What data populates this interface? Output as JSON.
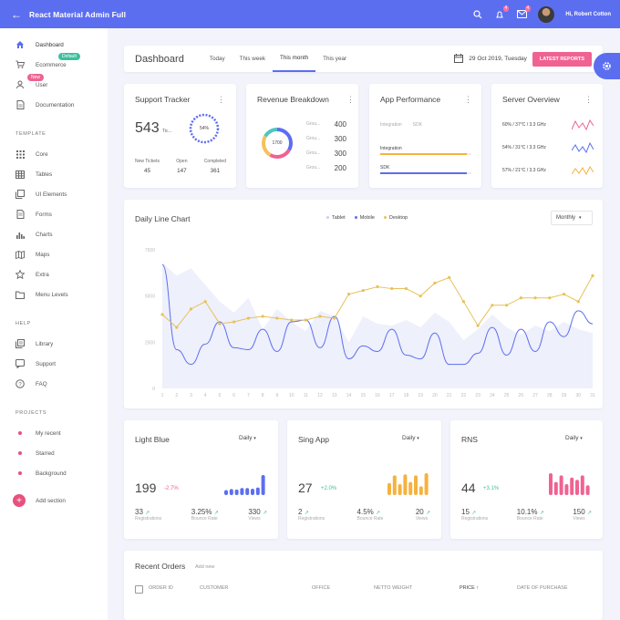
{
  "topbar": {
    "title": "React Material Admin Full",
    "badge1": "4",
    "badge2": "4",
    "user": "Hi, Robert Cotton"
  },
  "sidebar": {
    "items": [
      {
        "label": "Dashboard",
        "icon": "home-icon"
      },
      {
        "label": "Ecommerce",
        "icon": "cart-icon",
        "badge": "Default"
      },
      {
        "label": "User",
        "icon": "user-icon",
        "badge": "New"
      },
      {
        "label": "Documentation",
        "icon": "document-icon"
      }
    ],
    "template_header": "TEMPLATE",
    "template_items": [
      {
        "label": "Core",
        "icon": "grid-icon"
      },
      {
        "label": "Tables",
        "icon": "table-icon"
      },
      {
        "label": "UI Elements",
        "icon": "layers-icon"
      },
      {
        "label": "Forms",
        "icon": "form-icon"
      },
      {
        "label": "Charts",
        "icon": "bar-chart-icon"
      },
      {
        "label": "Maps",
        "icon": "map-icon"
      },
      {
        "label": "Extra",
        "icon": "star-icon"
      },
      {
        "label": "Menu Levels",
        "icon": "folder-icon"
      }
    ],
    "help_header": "HELP",
    "help_items": [
      {
        "label": "Library",
        "icon": "library-icon"
      },
      {
        "label": "Support",
        "icon": "support-icon"
      },
      {
        "label": "FAQ",
        "icon": "faq-icon"
      }
    ],
    "projects_header": "PROJECTS",
    "project_items": [
      {
        "label": "My recent",
        "color": "#e8517e"
      },
      {
        "label": "Starred",
        "color": "#e8517e"
      },
      {
        "label": "Background",
        "color": "#e8517e"
      }
    ],
    "add_section": "Add section"
  },
  "header": {
    "title": "Dashboard",
    "tabs": [
      "Today",
      "This week",
      "This month",
      "This year"
    ],
    "active_tab": "This month",
    "date": "29 Oct 2019, Tuesday",
    "button": "LATEST REPORTS"
  },
  "support": {
    "title": "Support Tracker",
    "value": "543",
    "value_sub": "Tic...",
    "ring": "54%",
    "ring_fraction": 0.54,
    "stats": [
      {
        "label": "New Tickets",
        "value": "45"
      },
      {
        "label": "Open",
        "value": "147"
      },
      {
        "label": "Completed",
        "value": "361"
      }
    ]
  },
  "revenue": {
    "title": "Revenue Breakdown",
    "center": "1700",
    "groups": [
      {
        "label": "Grou...",
        "value": "400",
        "color": "#5c6ef0"
      },
      {
        "label": "Grou...",
        "value": "300",
        "color": "#f06292"
      },
      {
        "label": "Grou...",
        "value": "300",
        "color": "#f5c15d"
      },
      {
        "label": "Grou...",
        "value": "200",
        "color": "#4fc6c1"
      }
    ]
  },
  "perf": {
    "title": "App Performance",
    "legend1": "Integration",
    "legend2": "SDK",
    "bars": [
      {
        "label": "Integration",
        "fraction": 0.95,
        "color": "#f5b23f"
      },
      {
        "label": "SDK",
        "fraction": 0.95,
        "color": "#5c6ef0"
      }
    ]
  },
  "server": {
    "title": "Server Overview",
    "rows": [
      {
        "label": "60% / 37°C / 3.3 GHz",
        "color": "#f06292"
      },
      {
        "label": "54% / 31°C / 3.3 GHz",
        "color": "#5c6ef0"
      },
      {
        "label": "57% / 21°C / 3.3 GHz",
        "color": "#f5b23f"
      }
    ]
  },
  "daily": {
    "title": "Daily Line Chart",
    "select": "Monthly"
  },
  "chart_data": {
    "type": "line",
    "legend": [
      "Tablet",
      "Mobile",
      "Desktop"
    ],
    "legend_colors": [
      "#cdd0f0",
      "#5c6ef0",
      "#e8c15a"
    ],
    "x": [
      1,
      2,
      3,
      4,
      5,
      6,
      7,
      8,
      9,
      10,
      11,
      12,
      13,
      14,
      15,
      16,
      17,
      18,
      19,
      20,
      21,
      22,
      23,
      24,
      25,
      26,
      27,
      28,
      29,
      30,
      31
    ],
    "yticks": [
      "7500",
      "5000",
      "2500",
      "0"
    ],
    "ylim": [
      0,
      7500
    ],
    "series": [
      {
        "name": "Tablet",
        "color": "#cdd0f0",
        "values": [
          6800,
          6100,
          6500,
          5600,
          4700,
          4100,
          4900,
          3200,
          4300,
          3600,
          3100,
          4200,
          3900,
          2500,
          3900,
          3500,
          3400,
          3700,
          3300,
          4100,
          3600,
          2600,
          3200,
          4000,
          3300,
          2900,
          3400,
          3100,
          3600,
          3200,
          3000
        ]
      },
      {
        "name": "Mobile",
        "color": "#5c6ef0",
        "values": [
          6700,
          2100,
          1300,
          2400,
          3600,
          2200,
          2100,
          3200,
          2000,
          3600,
          3700,
          2200,
          3900,
          1600,
          2300,
          2000,
          3200,
          1800,
          1600,
          3000,
          1300,
          1300,
          1900,
          3300,
          1800,
          3200,
          2000,
          3600,
          2800,
          4200,
          3500
        ]
      },
      {
        "name": "Desktop",
        "color": "#e8c15a",
        "values": [
          4000,
          3300,
          4300,
          4700,
          3500,
          3600,
          3800,
          3900,
          3800,
          3700,
          3700,
          3900,
          3800,
          5100,
          5300,
          5500,
          5400,
          5400,
          5000,
          5700,
          6000,
          4700,
          3400,
          4500,
          4500,
          4900,
          4900,
          4900,
          5100,
          4700,
          6100
        ]
      }
    ]
  },
  "stats": [
    {
      "title": "Light Blue",
      "select": "Daily",
      "value": "199",
      "change": "-2.7%",
      "change_color": "#f06292",
      "color": "#5c6ef0",
      "bars": [
        0.25,
        0.3,
        0.28,
        0.35,
        0.35,
        0.32,
        0.38,
        1.0
      ],
      "subs": [
        {
          "v": "33",
          "l": "Registrations"
        },
        {
          "v": "3.25%",
          "l": "Bounce Rate"
        },
        {
          "v": "330",
          "l": "Views"
        }
      ]
    },
    {
      "title": "Sing App",
      "select": "Daily",
      "value": "27",
      "change": "+2.0%",
      "change_color": "#3dbf9e",
      "color": "#f5b23f",
      "bars": [
        0.55,
        0.9,
        0.5,
        0.95,
        0.6,
        0.9,
        0.4,
        1.0
      ],
      "subs": [
        {
          "v": "2",
          "l": "Registrations"
        },
        {
          "v": "4.5%",
          "l": "Bounce Rate"
        },
        {
          "v": "20",
          "l": "Views"
        }
      ]
    },
    {
      "title": "RNS",
      "select": "Daily",
      "value": "44",
      "change": "+3.1%",
      "change_color": "#3dbf9e",
      "color": "#f06292",
      "bars": [
        1.0,
        0.6,
        0.9,
        0.5,
        0.8,
        0.7,
        0.9,
        0.45
      ],
      "subs": [
        {
          "v": "15",
          "l": "Registrations"
        },
        {
          "v": "10.1%",
          "l": "Bounce Rate"
        },
        {
          "v": "150",
          "l": "Views"
        }
      ]
    }
  ],
  "orders": {
    "title": "Recent Orders",
    "link": "Add new",
    "columns": [
      "ORDER ID",
      "CUSTOMER",
      "OFFICE",
      "NETTO WEIGHT",
      "PRICE",
      "DATE OF PURCHASE"
    ]
  }
}
